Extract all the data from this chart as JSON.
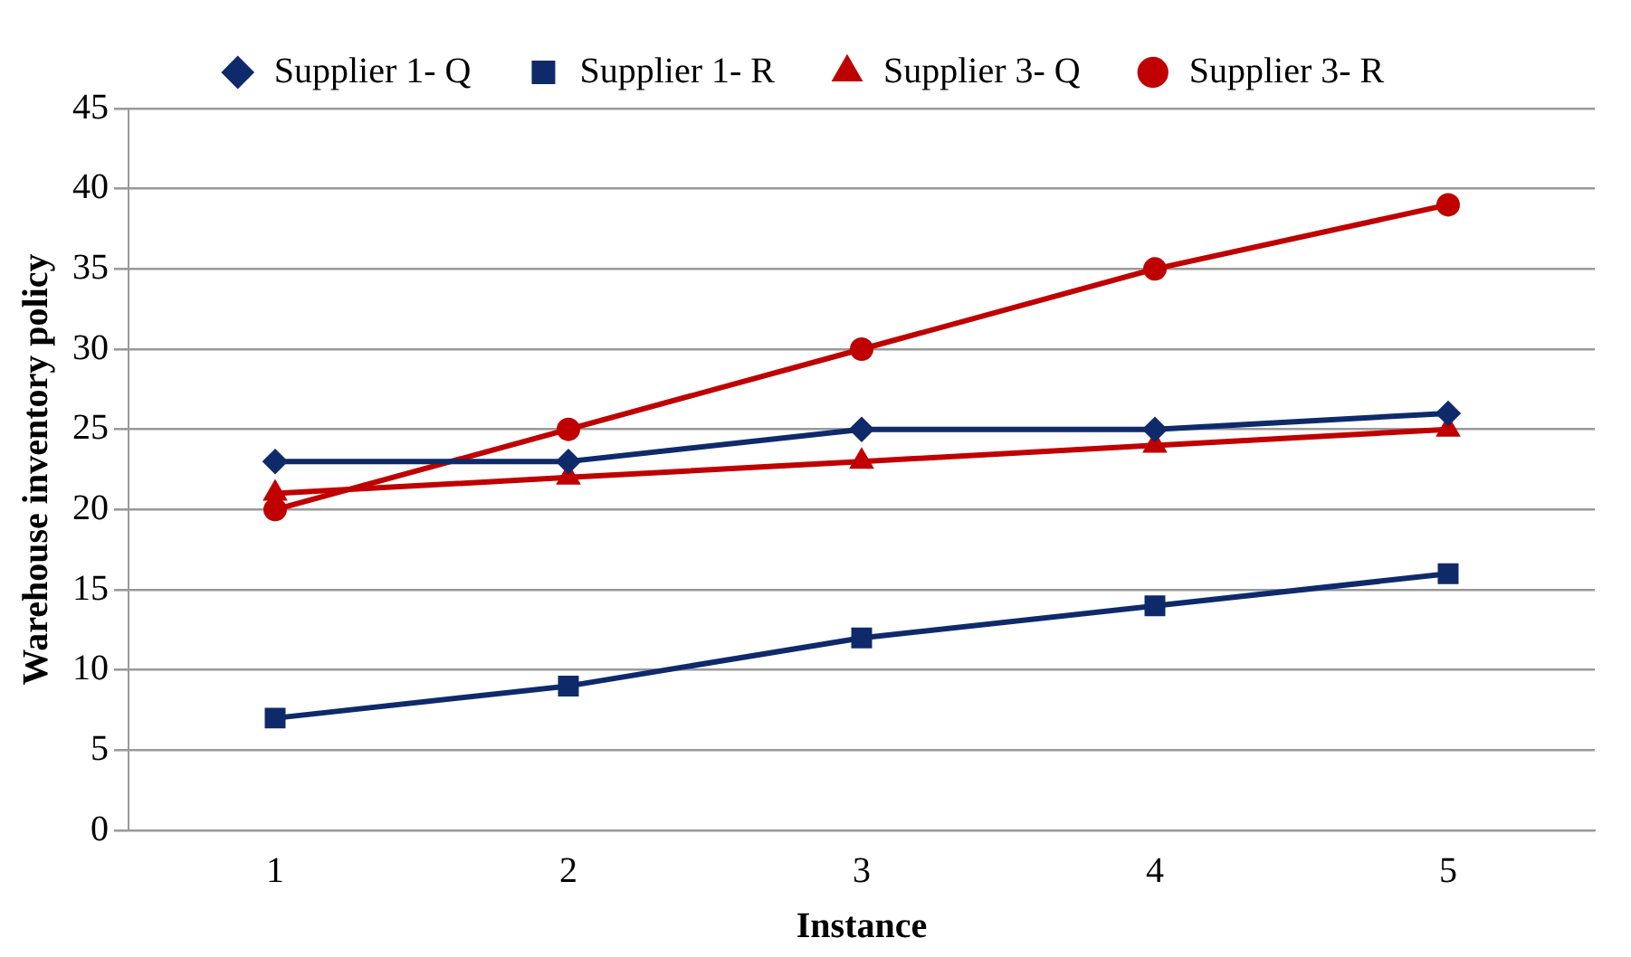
{
  "chart_data": {
    "type": "line",
    "xlabel": "Instance",
    "ylabel": "Warehouse inventory policy",
    "categories": [
      "1",
      "2",
      "3",
      "4",
      "5"
    ],
    "series": [
      {
        "name": "Supplier 1- Q",
        "color": "#0e2a6b",
        "marker": "diamond",
        "values": [
          23,
          23,
          25,
          25,
          26
        ]
      },
      {
        "name": "Supplier 1- R",
        "color": "#0e2a6b",
        "marker": "square",
        "values": [
          7,
          9,
          12,
          14,
          16
        ]
      },
      {
        "name": "Supplier 3- Q",
        "color": "#c00000",
        "marker": "triangle",
        "values": [
          21,
          22,
          23,
          24,
          25
        ]
      },
      {
        "name": "Supplier 3- R",
        "color": "#c00000",
        "marker": "circle",
        "values": [
          20,
          25,
          30,
          35,
          39
        ]
      }
    ],
    "ylim": [
      0,
      45
    ],
    "yticks": [
      0,
      5,
      10,
      15,
      20,
      25,
      30,
      35,
      40,
      45
    ],
    "grid": "y",
    "legend": "top",
    "line_style": "solid"
  }
}
